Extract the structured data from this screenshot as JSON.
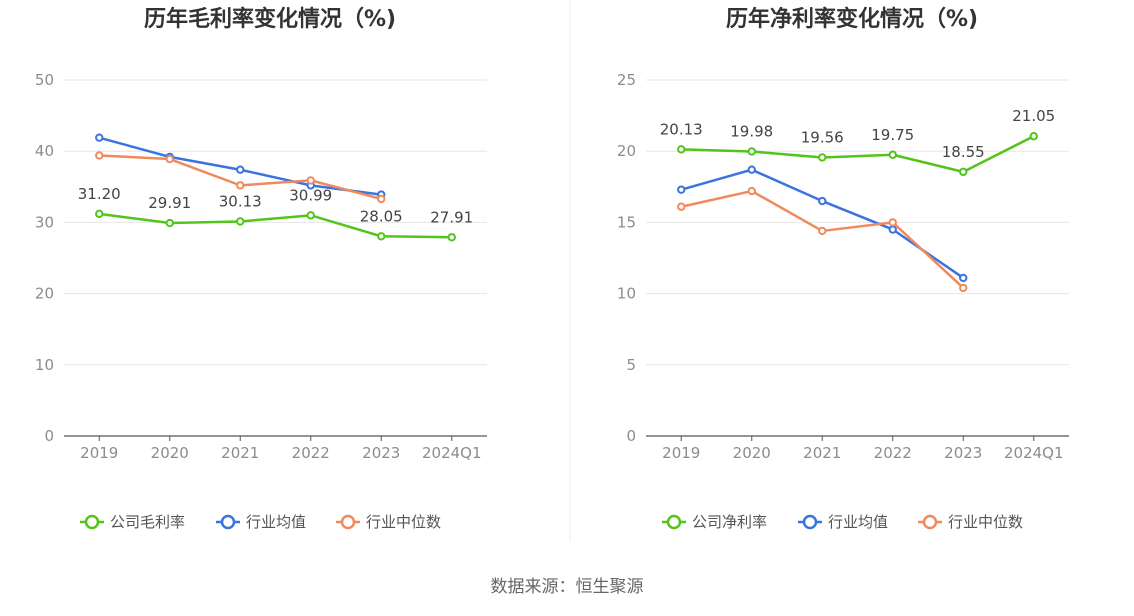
{
  "source": "数据来源：恒生聚源",
  "colors": {
    "company": "#52c41a",
    "industry_avg": "#3a73e0",
    "industry_median": "#f08a5d",
    "grid": "#e6e6e6",
    "axis": "#555555",
    "tick_text": "#8c8c8c",
    "title_text": "#333333",
    "label_text": "#444444",
    "legend_text": "#555555"
  },
  "chart_data": [
    {
      "type": "line",
      "title": "历年毛利率变化情况（%)",
      "xlabel": "",
      "ylabel": "",
      "categories": [
        "2019",
        "2020",
        "2021",
        "2022",
        "2023",
        "2024Q1"
      ],
      "ylim": [
        0,
        50
      ],
      "yticks": [
        0,
        10,
        20,
        30,
        40,
        50
      ],
      "grid": true,
      "legend_position": "bottom",
      "series": [
        {
          "name": "公司毛利率",
          "role": "company",
          "values": [
            31.2,
            29.91,
            30.13,
            30.99,
            28.05,
            27.91
          ],
          "labels": [
            "31.20",
            "29.91",
            "30.13",
            "30.99",
            "28.05",
            "27.91"
          ]
        },
        {
          "name": "行业均值",
          "role": "industry_avg",
          "values": [
            41.9,
            39.2,
            37.4,
            35.2,
            33.9,
            null
          ]
        },
        {
          "name": "行业中位数",
          "role": "industry_median",
          "values": [
            39.4,
            38.9,
            35.2,
            35.9,
            33.3,
            null
          ]
        }
      ]
    },
    {
      "type": "line",
      "title": "历年净利率变化情况（%)",
      "xlabel": "",
      "ylabel": "",
      "categories": [
        "2019",
        "2020",
        "2021",
        "2022",
        "2023",
        "2024Q1"
      ],
      "ylim": [
        0,
        25
      ],
      "yticks": [
        0,
        5,
        10,
        15,
        20,
        25
      ],
      "grid": true,
      "legend_position": "bottom",
      "series": [
        {
          "name": "公司净利率",
          "role": "company",
          "values": [
            20.13,
            19.98,
            19.56,
            19.75,
            18.55,
            21.05
          ],
          "labels": [
            "20.13",
            "19.98",
            "19.56",
            "19.75",
            "18.55",
            "21.05"
          ]
        },
        {
          "name": "行业均值",
          "role": "industry_avg",
          "values": [
            17.3,
            18.7,
            16.5,
            14.5,
            11.1,
            null
          ]
        },
        {
          "name": "行业中位数",
          "role": "industry_median",
          "values": [
            16.1,
            17.2,
            14.4,
            15.0,
            10.4,
            null
          ]
        }
      ]
    }
  ]
}
